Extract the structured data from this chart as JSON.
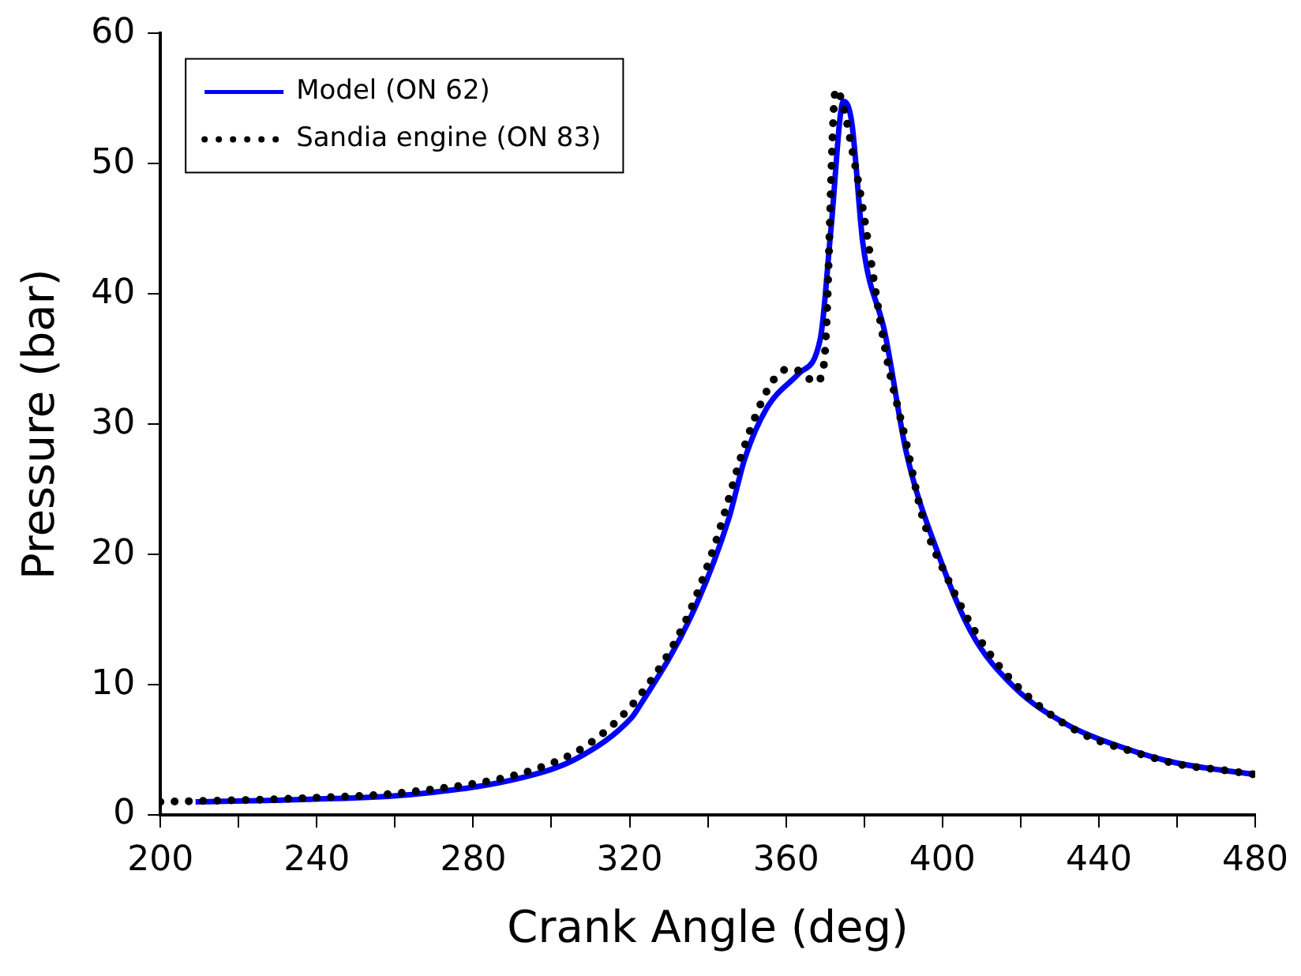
{
  "chart_data": {
    "type": "line",
    "xlabel": "Crank Angle (deg)",
    "ylabel": "Pressure (bar)",
    "xlim": [
      200,
      480
    ],
    "xticks": [
      200,
      {
        "value": 220,
        "label": null
      },
      240,
      {
        "value": 260,
        "label": null
      },
      280,
      {
        "value": 300,
        "label": null
      },
      320,
      {
        "value": 340,
        "label": null
      },
      360,
      {
        "value": 380,
        "label": null
      },
      400,
      {
        "value": 420,
        "label": null
      },
      440,
      {
        "value": 460,
        "label": null
      },
      480
    ],
    "ylim": [
      0,
      60
    ],
    "yticks": [
      0,
      10,
      20,
      30,
      40,
      50,
      60
    ],
    "grid": false,
    "legend": "top left",
    "marker": "none",
    "series": [
      {
        "name": "Model (ON 62)",
        "color": "#0000ff",
        "line_style": "solid",
        "x": [
          209,
          238,
          265.5,
          293,
          306.9,
          320.6,
          322,
          335.8,
          345.4,
          349.5,
          355,
          363.3,
          368.8,
          371.5,
          374.7,
          376.8,
          379.7,
          385.3,
          390.8,
          399.1,
          407.4,
          418.4,
          432.1,
          445.9,
          459.7,
          480
        ],
        "values": [
          1.0,
          1.2,
          1.6,
          2.9,
          4.4,
          7.5,
          8.1,
          15.3,
          22.8,
          27.4,
          31.2,
          33.9,
          36.6,
          45,
          54.8,
          53.2,
          43.8,
          37,
          27.8,
          19.9,
          14.0,
          9.8,
          6.9,
          5.2,
          4.0,
          3.1
        ]
      },
      {
        "name": "Sandia engine (ON 83)",
        "color": "#000000",
        "line_style": "dotted",
        "x": [
          200,
          238,
          265,
          295.8,
          310.3,
          322.7,
          333.7,
          341.3,
          345.1,
          348.6,
          353,
          356.8,
          360.1,
          364.1,
          367.4,
          369.5,
          370.2,
          372.7,
          377.6,
          385.7,
          390.5,
          395,
          401.4,
          409.1,
          416.6,
          425.9,
          436.7,
          448.2,
          460.3,
          472.7,
          480
        ],
        "values": [
          1.0,
          1.3,
          1.8,
          3.5,
          5.6,
          9.2,
          14.5,
          20.3,
          24,
          27.6,
          31.2,
          33.4,
          34.2,
          34.0,
          33.2,
          34.2,
          36.7,
          55.7,
          50,
          35.2,
          28.9,
          22.8,
          18.1,
          13.7,
          10.7,
          8.1,
          6.1,
          4.9,
          3.9,
          3.4,
          3.1
        ]
      }
    ]
  }
}
